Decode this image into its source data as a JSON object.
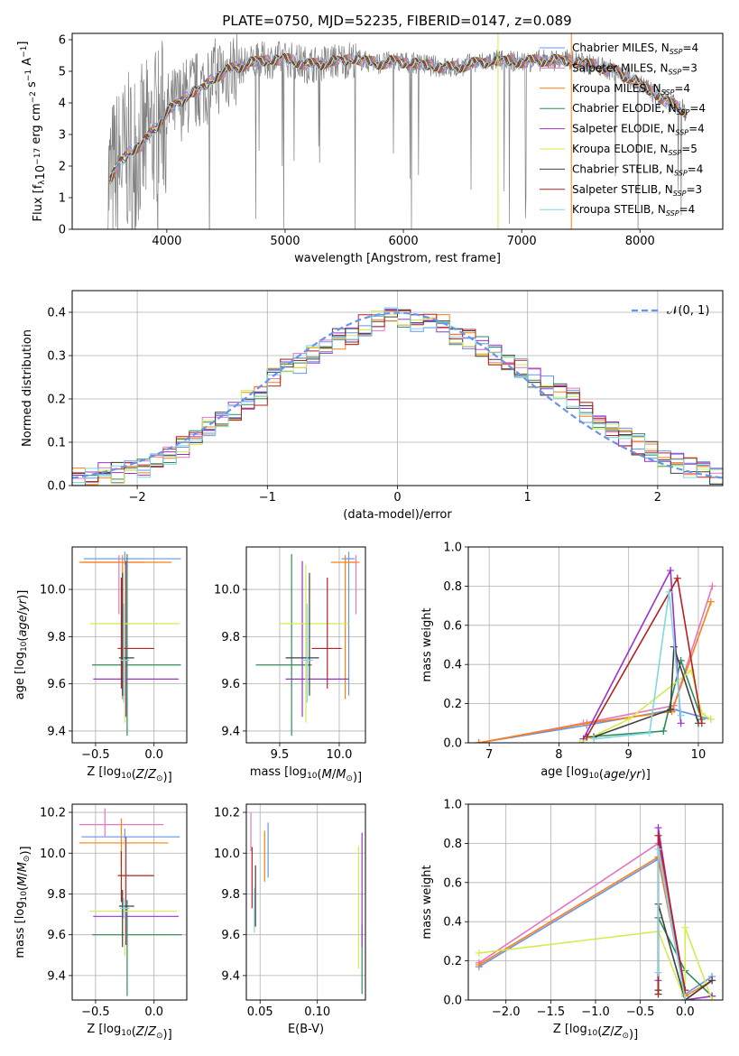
{
  "figure": {
    "title": "PLATE=0750, MJD=52235, FIBERID=0147, z=0.089"
  },
  "colors": {
    "Chabrier MILES": "#6495ed",
    "Salpeter MILES": "#e377c2",
    "Kroupa MILES": "#ff7f0e",
    "Chabrier ELODIE": "#2e8b57",
    "Salpeter ELODIE": "#9932cc",
    "Kroupa ELODIE": "#d4ea4e",
    "Chabrier STELIB": "#404040",
    "Salpeter STELIB": "#b22222",
    "Kroupa STELIB": "#7fd8e0",
    "data": "#808080"
  },
  "chart_data": [
    {
      "id": "spectrum",
      "type": "line",
      "xlabel": "wavelength [Angstrom, rest frame]",
      "ylabel": "Flux [f_λ10^-17 erg cm^-2 s^-1 A^-1]",
      "xlim": [
        3200,
        8700
      ],
      "ylim": [
        0,
        6.2
      ],
      "xticks": [
        4000,
        5000,
        6000,
        7000,
        8000
      ],
      "yticks": [
        0,
        1,
        2,
        3,
        4,
        5,
        6
      ],
      "legend_position": "right",
      "legend": [
        {
          "name": "Chabrier MILES",
          "nssp": "4"
        },
        {
          "name": "Salpeter MILES",
          "nssp": "3"
        },
        {
          "name": "Kroupa MILES",
          "nssp": "4"
        },
        {
          "name": "Chabrier ELODIE",
          "nssp": "4"
        },
        {
          "name": "Salpeter ELODIE",
          "nssp": "4"
        },
        {
          "name": "Kroupa ELODIE",
          "nssp": "5"
        },
        {
          "name": "Chabrier STELIB",
          "nssp": "4"
        },
        {
          "name": "Salpeter STELIB",
          "nssp": "3"
        },
        {
          "name": "Kroupa STELIB",
          "nssp": "4"
        }
      ],
      "continuum": {
        "x": [
          3500,
          3600,
          3700,
          3800,
          3900,
          4000,
          4100,
          4200,
          4300,
          4400,
          4500,
          4600,
          4700,
          4800,
          4900,
          5000,
          5100,
          5200,
          5300,
          5400,
          5500,
          5600,
          5700,
          5800,
          5900,
          6000,
          6200,
          6400,
          6600,
          6800,
          7000,
          7200,
          7400,
          7600,
          7800,
          8000,
          8200,
          8400
        ],
        "y": [
          1.4,
          2.1,
          2.5,
          2.7,
          3.2,
          3.7,
          4.0,
          4.3,
          4.45,
          4.8,
          5.0,
          5.15,
          5.25,
          5.35,
          5.35,
          5.4,
          5.3,
          5.2,
          5.25,
          5.3,
          5.35,
          5.4,
          5.3,
          5.25,
          5.3,
          5.3,
          5.2,
          5.1,
          5.25,
          5.35,
          5.3,
          5.35,
          5.35,
          5.2,
          5.0,
          4.6,
          4.1,
          3.7
        ]
      }
    },
    {
      "id": "residuals",
      "type": "histogram",
      "xlabel": "(data-model)/error",
      "ylabel": "Normed distribution",
      "xlim": [
        -2.5,
        2.5
      ],
      "ylim": [
        0,
        0.45
      ],
      "xticks": [
        -2,
        -1,
        0,
        1,
        2
      ],
      "yticks": [
        0.0,
        0.1,
        0.2,
        0.3,
        0.4
      ],
      "legend_label": "𝒩(0, 1)",
      "legend_position": "top-right",
      "reference_curve": "N(0,1)",
      "bin_width": 0.1,
      "bin_start": -2.5,
      "approx_values": [
        0.02,
        0.02,
        0.035,
        0.03,
        0.035,
        0.04,
        0.05,
        0.07,
        0.09,
        0.11,
        0.135,
        0.155,
        0.175,
        0.2,
        0.21,
        0.25,
        0.27,
        0.28,
        0.3,
        0.32,
        0.34,
        0.35,
        0.37,
        0.38,
        0.39,
        0.39,
        0.38,
        0.38,
        0.37,
        0.35,
        0.34,
        0.32,
        0.3,
        0.28,
        0.27,
        0.25,
        0.23,
        0.21,
        0.2,
        0.17,
        0.15,
        0.13,
        0.11,
        0.095,
        0.08,
        0.065,
        0.05,
        0.04,
        0.03,
        0.025
      ]
    },
    {
      "id": "age_vs_Z",
      "type": "scatter",
      "xlabel": "Z [log10(Z/Z⊙)]",
      "ylabel": "age  [log10(age/yr)]",
      "xlim": [
        -0.7,
        0.28
      ],
      "ylim": [
        9.35,
        10.18
      ],
      "xticks": [
        -0.5,
        0.0
      ],
      "yticks": [
        9.4,
        9.6,
        9.8,
        10.0
      ],
      "points": [
        {
          "model": "Chabrier MILES",
          "x": -0.25,
          "y": 10.13,
          "xerr": [
            0.35,
            0.48
          ],
          "yerr": [
            0.58,
            0.03
          ]
        },
        {
          "model": "Salpeter MILES",
          "x": -0.3,
          "y": 10.115,
          "xerr": [
            0.3,
            0.22
          ],
          "yerr": [
            0.22,
            0.03
          ]
        },
        {
          "model": "Kroupa MILES",
          "x": -0.27,
          "y": 10.115,
          "xerr": [
            0.37,
            0.42
          ],
          "yerr": [
            0.58,
            0.03
          ]
        },
        {
          "model": "Chabrier ELODIE",
          "x": -0.23,
          "y": 9.68,
          "xerr": [
            0.3,
            0.46
          ],
          "yerr": [
            0.3,
            0.47
          ]
        },
        {
          "model": "Salpeter ELODIE",
          "x": -0.24,
          "y": 9.62,
          "xerr": [
            0.28,
            0.45
          ],
          "yerr": [
            0.16,
            0.5
          ]
        },
        {
          "model": "Kroupa ELODIE",
          "x": -0.25,
          "y": 9.855,
          "xerr": [
            0.3,
            0.47
          ],
          "yerr": [
            0.42,
            0.25
          ]
        },
        {
          "model": "Chabrier STELIB",
          "x": -0.27,
          "y": 9.71,
          "xerr": [
            0.03,
            0.1
          ],
          "yerr": [
            0.16,
            0.36
          ]
        },
        {
          "model": "Salpeter STELIB",
          "x": -0.28,
          "y": 9.75,
          "xerr": [
            0.03,
            0.28
          ],
          "yerr": [
            0.17,
            0.3
          ]
        },
        {
          "model": "Kroupa STELIB",
          "x": -0.26,
          "y": 9.7,
          "xerr": [
            0.03,
            0.05
          ],
          "yerr": [
            0.18,
            0.24
          ]
        }
      ]
    },
    {
      "id": "age_vs_mass",
      "type": "scatter",
      "xlabel": "mass [log10(M/M⊙)]",
      "ylabel": "",
      "xlim": [
        9.22,
        10.22
      ],
      "ylim": [
        9.35,
        10.18
      ],
      "xticks": [
        9.5,
        10.0
      ],
      "yticks": [
        9.4,
        9.6,
        9.8,
        10.0
      ],
      "points": [
        {
          "model": "Chabrier MILES",
          "x": 10.08,
          "y": 10.13,
          "xerr": [
            0.06,
            0.05
          ],
          "yerr": [
            0.58,
            0.03
          ]
        },
        {
          "model": "Salpeter MILES",
          "x": 10.14,
          "y": 10.115,
          "xerr": [
            0.06,
            0.0
          ],
          "yerr": [
            0.22,
            0.03
          ]
        },
        {
          "model": "Kroupa MILES",
          "x": 10.05,
          "y": 10.115,
          "xerr": [
            0.12,
            0.12
          ],
          "yerr": [
            0.58,
            0.03
          ]
        },
        {
          "model": "Chabrier ELODIE",
          "x": 9.6,
          "y": 9.68,
          "xerr": [
            0.3,
            0.17
          ],
          "yerr": [
            0.3,
            0.47
          ]
        },
        {
          "model": "Salpeter ELODIE",
          "x": 9.69,
          "y": 9.62,
          "xerr": [
            0.14,
            0.39
          ],
          "yerr": [
            0.16,
            0.5
          ]
        },
        {
          "model": "Kroupa ELODIE",
          "x": 9.72,
          "y": 9.855,
          "xerr": [
            0.22,
            0.36
          ],
          "yerr": [
            0.42,
            0.25
          ]
        },
        {
          "model": "Chabrier STELIB",
          "x": 9.75,
          "y": 9.71,
          "xerr": [
            0.2,
            0.08
          ],
          "yerr": [
            0.16,
            0.36
          ]
        },
        {
          "model": "Salpeter STELIB",
          "x": 9.9,
          "y": 9.75,
          "xerr": [
            0.13,
            0.12
          ],
          "yerr": [
            0.17,
            0.3
          ]
        },
        {
          "model": "Kroupa STELIB",
          "x": 9.73,
          "y": 9.7,
          "xerr": [
            0.05,
            0.05
          ],
          "yerr": [
            0.18,
            0.24
          ]
        }
      ]
    },
    {
      "id": "weight_vs_age",
      "type": "line",
      "xlabel": "age  [log10(age/yr)]",
      "ylabel": "mass weight",
      "xlim": [
        6.7,
        10.35
      ],
      "ylim": [
        0,
        1.0
      ],
      "xticks": [
        7,
        8,
        9,
        10
      ],
      "yticks": [
        0.0,
        0.2,
        0.4,
        0.6,
        0.8,
        1.0
      ],
      "series": [
        {
          "model": "Chabrier MILES",
          "x": [
            6.85,
            8.4,
            9.65,
            10.18
          ],
          "y": [
            0.0,
            0.09,
            0.17,
            0.12
          ]
        },
        {
          "model": "Salpeter MILES",
          "x": [
            6.85,
            8.35,
            9.65,
            10.2
          ],
          "y": [
            0.0,
            0.1,
            0.19,
            0.8
          ]
        },
        {
          "model": "Kroupa MILES",
          "x": [
            6.85,
            8.4,
            9.62,
            10.18
          ],
          "y": [
            0.0,
            0.1,
            0.16,
            0.72
          ]
        },
        {
          "model": "Chabrier ELODIE",
          "x": [
            8.4,
            9.5,
            9.75,
            10.05
          ],
          "y": [
            0.03,
            0.06,
            0.42,
            0.12
          ]
        },
        {
          "model": "Salpeter ELODIE",
          "x": [
            8.35,
            9.6,
            9.75
          ],
          "y": [
            0.02,
            0.88,
            0.1
          ]
        },
        {
          "model": "Kroupa ELODIE",
          "x": [
            8.3,
            9.0,
            9.9,
            10.05,
            10.18
          ],
          "y": [
            0.0,
            0.12,
            0.37,
            0.15,
            0.12
          ]
        },
        {
          "model": "Chabrier STELIB",
          "x": [
            8.5,
            9.6,
            9.65,
            10.0
          ],
          "y": [
            0.03,
            0.17,
            0.49,
            0.1
          ]
        },
        {
          "model": "Salpeter STELIB",
          "x": [
            8.4,
            9.7,
            10.05
          ],
          "y": [
            0.03,
            0.84,
            0.1
          ]
        },
        {
          "model": "Kroupa STELIB",
          "x": [
            8.5,
            9.3,
            9.58,
            9.75
          ],
          "y": [
            0.02,
            0.05,
            0.77,
            0.14
          ]
        }
      ]
    },
    {
      "id": "mass_vs_Z",
      "type": "scatter",
      "xlabel": "Z [log10(Z/Z⊙)]",
      "ylabel": "mass [log10(M/M⊙)]",
      "xlim": [
        -0.7,
        0.28
      ],
      "ylim": [
        9.28,
        10.24
      ],
      "xticks": [
        -0.5,
        0.0
      ],
      "yticks": [
        9.4,
        9.6,
        9.8,
        10.0,
        10.2
      ],
      "points": [
        {
          "model": "Chabrier MILES",
          "x": -0.25,
          "y": 10.08,
          "xerr": [
            0.37,
            0.47
          ],
          "yerr": [
            0.04,
            0.04
          ]
        },
        {
          "model": "Salpeter MILES",
          "x": -0.42,
          "y": 10.14,
          "xerr": [
            0.22,
            0.5
          ],
          "yerr": [
            0.06,
            0.08
          ]
        },
        {
          "model": "Kroupa MILES",
          "x": -0.28,
          "y": 10.05,
          "xerr": [
            0.36,
            0.4
          ],
          "yerr": [
            0.11,
            0.12
          ]
        },
        {
          "model": "Chabrier ELODIE",
          "x": -0.23,
          "y": 9.6,
          "xerr": [
            0.3,
            0.47
          ],
          "yerr": [
            0.3,
            0.17
          ]
        },
        {
          "model": "Salpeter ELODIE",
          "x": -0.24,
          "y": 9.69,
          "xerr": [
            0.28,
            0.45
          ],
          "yerr": [
            0.14,
            0.39
          ]
        },
        {
          "model": "Kroupa ELODIE",
          "x": -0.25,
          "y": 9.715,
          "xerr": [
            0.3,
            0.45
          ],
          "yerr": [
            0.22,
            0.36
          ]
        },
        {
          "model": "Chabrier STELIB",
          "x": -0.27,
          "y": 9.74,
          "xerr": [
            0.03,
            0.1
          ],
          "yerr": [
            0.2,
            0.08
          ]
        },
        {
          "model": "Salpeter STELIB",
          "x": -0.28,
          "y": 9.89,
          "xerr": [
            0.03,
            0.28
          ],
          "yerr": [
            0.13,
            0.12
          ]
        },
        {
          "model": "Kroupa STELIB",
          "x": -0.26,
          "y": 9.73,
          "xerr": [
            0.03,
            0.05
          ],
          "yerr": [
            0.05,
            0.05
          ]
        }
      ]
    },
    {
      "id": "mass_vs_ebv",
      "type": "scatter",
      "xlabel": "E(B-V)",
      "ylabel": "",
      "xlim": [
        0.038,
        0.142
      ],
      "ylim": [
        9.28,
        10.24
      ],
      "xticks": [
        0.05,
        0.1
      ],
      "yticks": [
        9.4,
        9.6,
        9.8,
        10.0,
        10.2
      ],
      "points": [
        {
          "model": "Chabrier MILES",
          "x": 0.057,
          "y": 10.08,
          "yerr": [
            0.2,
            0.07
          ]
        },
        {
          "model": "Salpeter MILES",
          "x": 0.042,
          "y": 10.14,
          "yerr": [
            0.13,
            0.06
          ]
        },
        {
          "model": "Kroupa MILES",
          "x": 0.054,
          "y": 10.05,
          "yerr": [
            0.19,
            0.06
          ]
        },
        {
          "model": "Chabrier ELODIE",
          "x": 0.139,
          "y": 9.6,
          "yerr": [
            0.29,
            0.05
          ]
        },
        {
          "model": "Salpeter ELODIE",
          "x": 0.139,
          "y": 9.69,
          "yerr": [
            0.15,
            0.41
          ]
        },
        {
          "model": "Kroupa ELODIE",
          "x": 0.136,
          "y": 9.715,
          "yerr": [
            0.28,
            0.32
          ]
        },
        {
          "model": "Chabrier STELIB",
          "x": 0.046,
          "y": 9.74,
          "yerr": [
            0.1,
            0.2
          ]
        },
        {
          "model": "Salpeter STELIB",
          "x": 0.043,
          "y": 9.89,
          "yerr": [
            0.16,
            0.14
          ]
        },
        {
          "model": "Kroupa STELIB",
          "x": 0.045,
          "y": 9.73,
          "yerr": [
            0.12,
            0.1
          ]
        }
      ]
    },
    {
      "id": "weight_vs_Z",
      "type": "line",
      "xlabel": "Z [log10(Z/Z⊙)]",
      "ylabel": "mass weight",
      "xlim": [
        -2.42,
        0.42
      ],
      "ylim": [
        0,
        1.0
      ],
      "xticks": [
        -2.0,
        -1.5,
        -1.0,
        -0.5,
        0.0
      ],
      "yticks": [
        0.0,
        0.2,
        0.4,
        0.6,
        0.8,
        1.0
      ],
      "series": [
        {
          "model": "Chabrier MILES",
          "x": [
            -2.3,
            -0.3,
            0.0,
            0.3
          ],
          "y": [
            0.17,
            0.72,
            0.03,
            0.12
          ]
        },
        {
          "model": "Salpeter MILES",
          "x": [
            -2.3,
            -0.3,
            0.0,
            0.3
          ],
          "y": [
            0.19,
            0.8,
            0.0,
            0.1
          ]
        },
        {
          "model": "Kroupa MILES",
          "x": [
            -2.3,
            -0.3,
            0.0,
            0.3
          ],
          "y": [
            0.18,
            0.73,
            0.02,
            0.1
          ]
        },
        {
          "model": "Chabrier ELODIE",
          "x": [
            -0.3,
            -0.3,
            0.0,
            0.3
          ],
          "y": [
            0.03,
            0.42,
            0.15,
            0.02
          ]
        },
        {
          "model": "Salpeter ELODIE",
          "x": [
            -0.3,
            -0.3,
            0.0,
            0.3
          ],
          "y": [
            0.1,
            0.88,
            0.0,
            0.02
          ]
        },
        {
          "model": "Kroupa ELODIE",
          "x": [
            -2.3,
            -0.3,
            0.0,
            0.0,
            0.3
          ],
          "y": [
            0.24,
            0.35,
            0.0,
            0.37,
            0.0
          ]
        },
        {
          "model": "Chabrier STELIB",
          "x": [
            -0.3,
            -0.3,
            0.0,
            0.3
          ],
          "y": [
            0.05,
            0.49,
            0.0,
            0.1
          ]
        },
        {
          "model": "Salpeter STELIB",
          "x": [
            -0.3,
            -0.3,
            0.0
          ],
          "y": [
            0.03,
            0.84,
            0.05
          ]
        },
        {
          "model": "Kroupa STELIB",
          "x": [
            -0.3,
            -0.3,
            0.0
          ],
          "y": [
            0.14,
            0.77,
            0.0
          ]
        }
      ]
    }
  ]
}
